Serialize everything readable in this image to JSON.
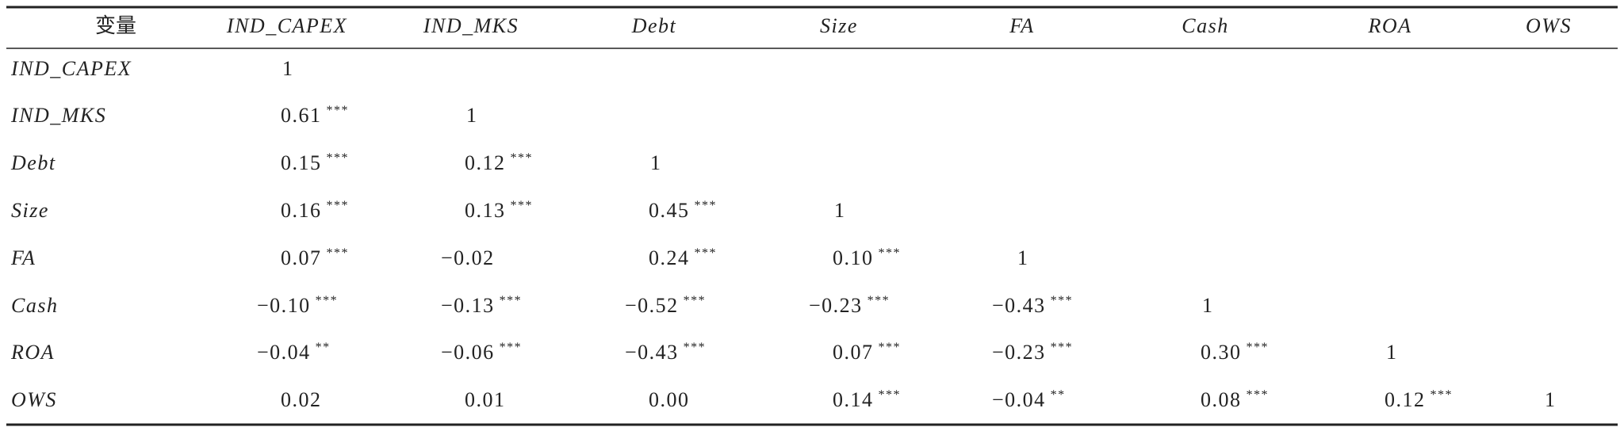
{
  "table": {
    "header": [
      "变量",
      "IND_CAPEX",
      "IND_MKS",
      "Debt",
      "Size",
      "FA",
      "Cash",
      "ROA",
      "OWS"
    ],
    "rows": [
      {
        "label": "IND_CAPEX",
        "cells": [
          {
            "value": "1"
          }
        ]
      },
      {
        "label": "IND_MKS",
        "cells": [
          {
            "value": "0.61",
            "sig": "***"
          },
          {
            "value": "1"
          }
        ]
      },
      {
        "label": "Debt",
        "cells": [
          {
            "value": "0.15",
            "sig": "***"
          },
          {
            "value": "0.12",
            "sig": "***"
          },
          {
            "value": "1"
          }
        ]
      },
      {
        "label": "Size",
        "cells": [
          {
            "value": "0.16",
            "sig": "***"
          },
          {
            "value": "0.13",
            "sig": "***"
          },
          {
            "value": "0.45",
            "sig": "***"
          },
          {
            "value": "1"
          }
        ]
      },
      {
        "label": "FA",
        "cells": [
          {
            "value": "0.07",
            "sig": "***"
          },
          {
            "value": "−0.02"
          },
          {
            "value": "0.24",
            "sig": "***"
          },
          {
            "value": "0.10",
            "sig": "***"
          },
          {
            "value": "1"
          }
        ]
      },
      {
        "label": "Cash",
        "cells": [
          {
            "value": "−0.10",
            "sig": "***"
          },
          {
            "value": "−0.13",
            "sig": "***"
          },
          {
            "value": "−0.52",
            "sig": "***"
          },
          {
            "value": "−0.23",
            "sig": "***"
          },
          {
            "value": "−0.43",
            "sig": "***"
          },
          {
            "value": "1"
          }
        ]
      },
      {
        "label": "ROA",
        "cells": [
          {
            "value": "−0.04",
            "sig": "**"
          },
          {
            "value": "−0.06",
            "sig": "***"
          },
          {
            "value": "−0.43",
            "sig": "***"
          },
          {
            "value": "0.07",
            "sig": "***"
          },
          {
            "value": "−0.23",
            "sig": "***"
          },
          {
            "value": "0.30",
            "sig": "***"
          },
          {
            "value": "1"
          }
        ]
      },
      {
        "label": "OWS",
        "cells": [
          {
            "value": "0.02"
          },
          {
            "value": "0.01"
          },
          {
            "value": "0.00"
          },
          {
            "value": "0.14",
            "sig": "***"
          },
          {
            "value": "−0.04",
            "sig": "**"
          },
          {
            "value": "0.08",
            "sig": "***"
          },
          {
            "value": "0.12",
            "sig": "***"
          },
          {
            "value": "1"
          }
        ]
      }
    ]
  }
}
